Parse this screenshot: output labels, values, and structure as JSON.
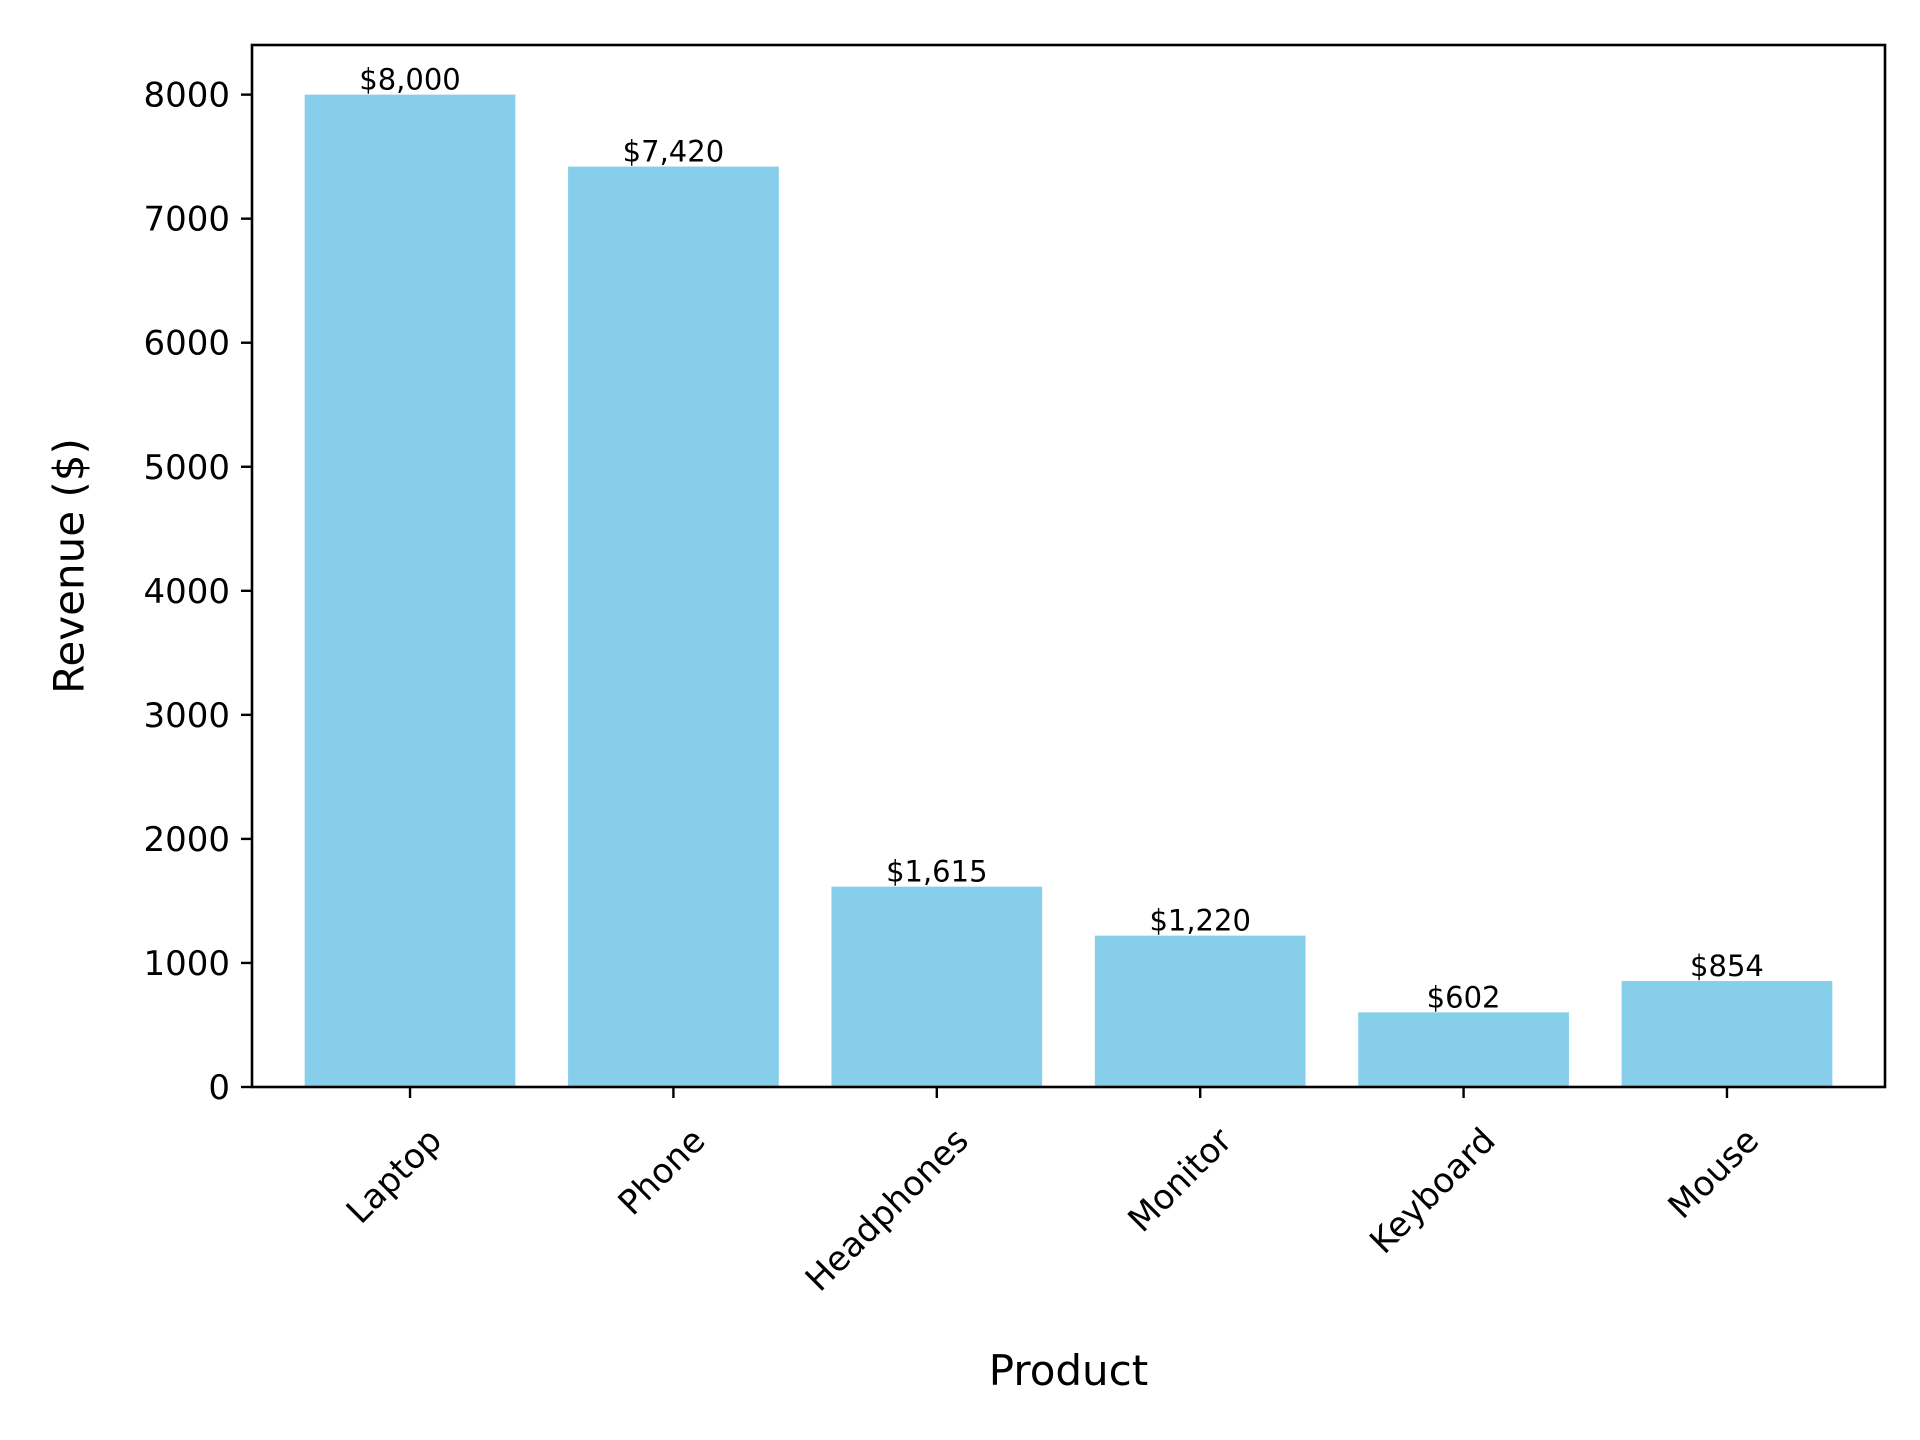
{
  "chart_data": {
    "type": "bar",
    "title": "",
    "xlabel": "Product",
    "ylabel": "Revenue ($)",
    "categories": [
      "Laptop",
      "Phone",
      "Headphones",
      "Monitor",
      "Keyboard",
      "Mouse"
    ],
    "values": [
      8000,
      7420,
      1615,
      1220,
      602,
      854
    ],
    "data_labels": [
      "$8,000",
      "$7,420",
      "$1,615",
      "$1,220",
      "$602",
      "$854"
    ],
    "yticks": [
      0,
      1000,
      2000,
      3000,
      4000,
      5000,
      6000,
      7000,
      8000
    ],
    "ylim": [
      0,
      8400
    ],
    "x_tick_rotation_deg": 45,
    "grid": false,
    "legend": "none",
    "bar_color": "#87ceeb",
    "axis_color": "#000000"
  }
}
